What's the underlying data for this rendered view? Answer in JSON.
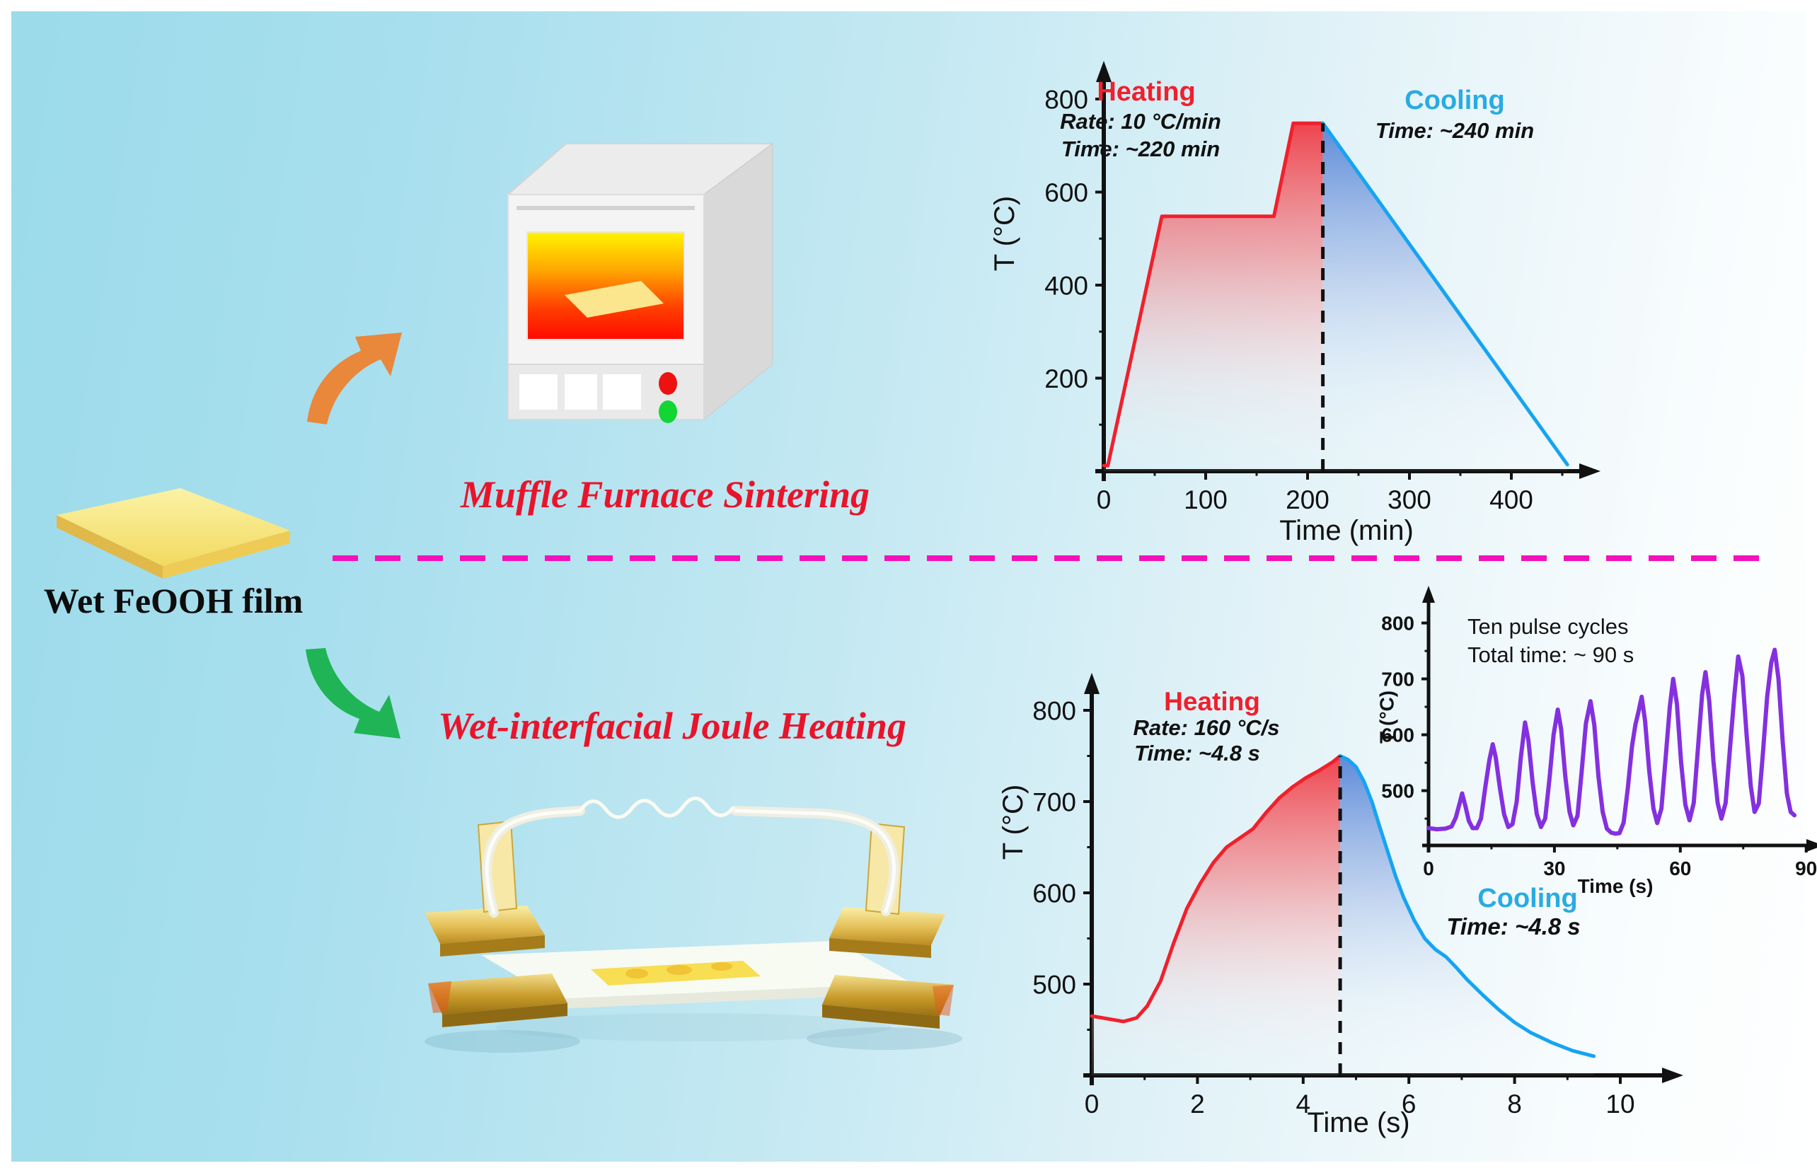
{
  "page": {
    "film_label": "Wet FeOOH film",
    "route_top_title": "Muffle Furnace Sintering",
    "route_bottom_title": "Wet-interfacial Joule Heating",
    "divider_color": "#F311BC",
    "background_left": "#9BDBEA",
    "background_right": "#FEFFFF"
  },
  "colors": {
    "heating_red": "#F0202C",
    "cooling_blue": "#29ABE2",
    "pulse_purple": "#8430E0",
    "route_title_red": "#E8142B",
    "orange_arrow": "#E9873B",
    "green_arrow": "#1FB455"
  },
  "chart_data": [
    {
      "id": "muffle-furnace-temperature-profile",
      "type": "area",
      "xlabel": "Time (min)",
      "ylabel": "T (°C)",
      "xlim": [
        0,
        470
      ],
      "ylim": [
        0,
        880
      ],
      "xticks": [
        0,
        100,
        200,
        300,
        400
      ],
      "yticks": [
        200,
        400,
        600,
        800
      ],
      "xticks_minor": [
        50,
        150,
        250,
        350,
        450
      ],
      "yticks_minor": [
        100,
        300,
        500,
        700
      ],
      "grid": false,
      "dashed_line_x": 215,
      "dashed_line_top": 748,
      "annotations": {
        "heating_label": "Heating",
        "heating_rate": "Rate: 10 °C/min",
        "heating_time": "Time: ~220 min",
        "cooling_label": "Cooling",
        "cooling_time": "Time: ~240 min"
      },
      "series": [
        {
          "name": "Heating",
          "color": "#F0202C",
          "fill": "heat",
          "points": [
            [
              0,
              12
            ],
            [
              4,
              12
            ],
            [
              57,
              548
            ],
            [
              167,
              548
            ],
            [
              186,
              748
            ],
            [
              215,
              748
            ]
          ]
        },
        {
          "name": "Cooling",
          "color": "#15A4F2",
          "fill": "cool",
          "points": [
            [
              215,
              748
            ],
            [
              455,
              14
            ]
          ]
        }
      ]
    },
    {
      "id": "joule-heating-temperature-profile",
      "type": "area",
      "xlabel": "Time (s)",
      "ylabel": "T (°C)",
      "xlim": [
        0,
        10.6
      ],
      "ylim": [
        400,
        870
      ],
      "xticks": [
        0,
        2,
        4,
        6,
        8,
        10
      ],
      "yticks": [
        500,
        600,
        700,
        800
      ],
      "xticks_minor": [
        1,
        3,
        5,
        7,
        9
      ],
      "yticks_minor": [
        450,
        550,
        650,
        750,
        850
      ],
      "grid": false,
      "dashed_line_x": 4.7,
      "dashed_line_top": 750,
      "annotations": {
        "heating_label": "Heating",
        "heating_rate": "Rate: 160 °C/s",
        "heating_time": "Time: ~4.8 s",
        "cooling_label": "Cooling",
        "cooling_time": "Time: ~4.8 s"
      },
      "series": [
        {
          "name": "Heating",
          "color": "#F0202C",
          "fill": "heat",
          "points": [
            [
              0,
              465
            ],
            [
              0.3,
              462
            ],
            [
              0.6,
              459
            ],
            [
              0.85,
              463
            ],
            [
              1.05,
              476
            ],
            [
              1.3,
              503
            ],
            [
              1.55,
              545
            ],
            [
              1.8,
              583
            ],
            [
              2.05,
              610
            ],
            [
              2.3,
              633
            ],
            [
              2.55,
              650
            ],
            [
              2.8,
              660
            ],
            [
              3.05,
              670
            ],
            [
              3.3,
              688
            ],
            [
              3.55,
              704
            ],
            [
              3.8,
              716
            ],
            [
              4.05,
              726
            ],
            [
              4.3,
              734
            ],
            [
              4.55,
              743
            ],
            [
              4.7,
              750
            ]
          ]
        },
        {
          "name": "Cooling",
          "color": "#15A4F2",
          "fill": "cool",
          "points": [
            [
              4.7,
              750
            ],
            [
              4.85,
              746
            ],
            [
              5.0,
              738
            ],
            [
              5.15,
              722
            ],
            [
              5.3,
              700
            ],
            [
              5.45,
              672
            ],
            [
              5.6,
              645
            ],
            [
              5.75,
              618
            ],
            [
              5.9,
              595
            ],
            [
              6.1,
              570
            ],
            [
              6.3,
              550
            ],
            [
              6.5,
              538
            ],
            [
              6.7,
              530
            ],
            [
              6.9,
              518
            ],
            [
              7.1,
              505
            ],
            [
              7.4,
              488
            ],
            [
              7.7,
              472
            ],
            [
              8.0,
              458
            ],
            [
              8.3,
              447
            ],
            [
              8.7,
              436
            ],
            [
              9.1,
              427
            ],
            [
              9.5,
              421
            ]
          ]
        }
      ]
    },
    {
      "id": "pulse-cycles-inset",
      "type": "line",
      "title": "Ten pulse cycles",
      "subtitle": "Total time: ~ 90 s",
      "xlabel": "Time (s)",
      "ylabel": "T (°C)",
      "xlim": [
        0,
        92
      ],
      "ylim": [
        400,
        830
      ],
      "xticks": [
        0,
        30,
        60,
        90
      ],
      "yticks": [
        500,
        600,
        700,
        800
      ],
      "xticks_minor": [
        15,
        45,
        75
      ],
      "yticks_minor": [
        450,
        550,
        650,
        750
      ],
      "grid": false,
      "series": [
        {
          "name": "Ten pulse cycles",
          "color": "#8430E0",
          "points": [
            [
              0,
              433
            ],
            [
              2,
              431
            ],
            [
              4,
              432
            ],
            [
              5.5,
              436
            ],
            [
              6.5,
              452
            ],
            [
              7.5,
              480
            ],
            [
              8,
              495
            ],
            [
              8.8,
              472
            ],
            [
              9.6,
              446
            ],
            [
              10.5,
              433
            ],
            [
              11.5,
              433
            ],
            [
              12.5,
              450
            ],
            [
              13.5,
              505
            ],
            [
              14.5,
              555
            ],
            [
              15.3,
              583
            ],
            [
              16,
              560
            ],
            [
              17,
              505
            ],
            [
              18,
              458
            ],
            [
              19,
              435
            ],
            [
              20,
              440
            ],
            [
              21,
              480
            ],
            [
              22,
              560
            ],
            [
              23,
              622
            ],
            [
              23.8,
              590
            ],
            [
              24.8,
              515
            ],
            [
              25.8,
              458
            ],
            [
              26.8,
              435
            ],
            [
              27.8,
              450
            ],
            [
              28.8,
              520
            ],
            [
              29.8,
              600
            ],
            [
              30.8,
              645
            ],
            [
              31.6,
              610
            ],
            [
              32.6,
              525
            ],
            [
              33.6,
              462
            ],
            [
              34.5,
              438
            ],
            [
              35.5,
              455
            ],
            [
              36.5,
              535
            ],
            [
              37.5,
              620
            ],
            [
              38.6,
              660
            ],
            [
              39.5,
              618
            ],
            [
              40.5,
              525
            ],
            [
              41.5,
              462
            ],
            [
              42.5,
              432
            ],
            [
              43.5,
              425
            ],
            [
              44.5,
              423
            ],
            [
              45.5,
              424
            ],
            [
              46.5,
              443
            ],
            [
              47.5,
              505
            ],
            [
              48.5,
              580
            ],
            [
              49.3,
              618
            ],
            [
              50,
              640
            ],
            [
              50.8,
              668
            ],
            [
              51.6,
              625
            ],
            [
              52.6,
              535
            ],
            [
              53.6,
              468
            ],
            [
              54.5,
              442
            ],
            [
              55.5,
              468
            ],
            [
              56.5,
              558
            ],
            [
              57.5,
              650
            ],
            [
              58.3,
              700
            ],
            [
              59.2,
              655
            ],
            [
              60.2,
              550
            ],
            [
              61.2,
              475
            ],
            [
              62.2,
              447
            ],
            [
              63.2,
              478
            ],
            [
              64.2,
              575
            ],
            [
              65.2,
              672
            ],
            [
              66,
              712
            ],
            [
              66.9,
              660
            ],
            [
              67.9,
              552
            ],
            [
              68.9,
              478
            ],
            [
              69.8,
              450
            ],
            [
              70.8,
              478
            ],
            [
              71.8,
              572
            ],
            [
              72.9,
              672
            ],
            [
              73.8,
              740
            ],
            [
              74.8,
              705
            ],
            [
              75.8,
              600
            ],
            [
              76.8,
              508
            ],
            [
              77.7,
              462
            ],
            [
              78.7,
              477
            ],
            [
              79.7,
              568
            ],
            [
              80.7,
              668
            ],
            [
              81.7,
              730
            ],
            [
              82.5,
              752
            ],
            [
              83.4,
              700
            ],
            [
              84.4,
              588
            ],
            [
              85.4,
              495
            ],
            [
              86.3,
              462
            ],
            [
              87.2,
              456
            ]
          ]
        }
      ]
    }
  ]
}
